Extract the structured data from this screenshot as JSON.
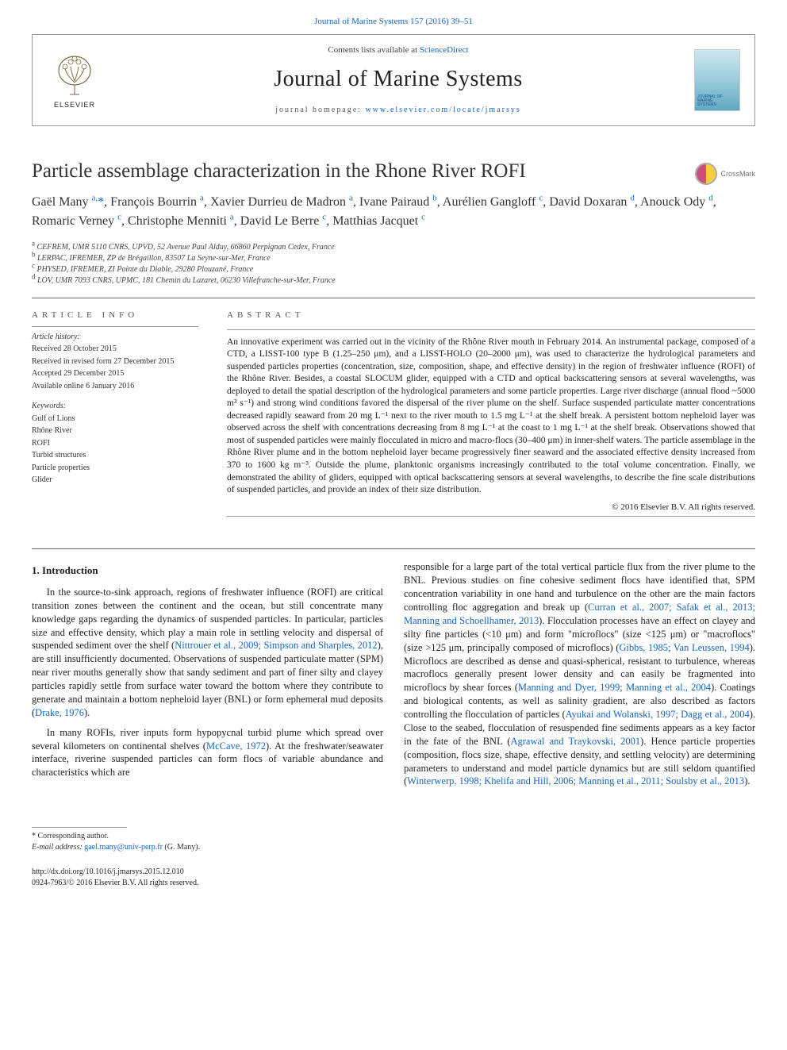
{
  "top_link": "Journal of Marine Systems 157 (2016) 39–51",
  "header": {
    "elsevier": "ELSEVIER",
    "contents_pre": "Contents lists available at ",
    "contents_link": "ScienceDirect",
    "journal": "Journal of Marine Systems",
    "homepage_pre": "journal homepage: ",
    "homepage_url": "www.elsevier.com/locate/jmarsys",
    "cover_caption1": "JOURNAL OF",
    "cover_caption2": "MARINE",
    "cover_caption3": "SYSTEMS"
  },
  "title": "Particle assemblage characterization in the Rhone River ROFI",
  "crossmark": "CrossMark",
  "authors_html": "Gaël Many <sup>a,</sup><span class='corr'>*</span>, François Bourrin <sup>a</sup>, Xavier Durrieu de Madron <sup>a</sup>, Ivane Pairaud <sup>b</sup>, Aurélien Gangloff <sup>c</sup>, David Doxaran <sup>d</sup>, Anouck Ody <sup>d</sup>, Romaric Verney <sup>c</sup>, Christophe Menniti <sup>a</sup>, David Le Berre <sup>c</sup>, Matthias Jacquet <sup>c</sup>",
  "affiliations": {
    "a": "CEFREM, UMR 5110 CNRS, UPVD, 52 Avenue Paul Alduy, 66860 Perpignan Cedex, France",
    "b": "LERPAC, IFREMER, ZP de Brégaillon, 83507 La Seyne-sur-Mer, France",
    "c": "PHYSED, IFREMER, ZI Pointe du Diable, 29280 Plouzané, France",
    "d": "LOV, UMR 7093 CNRS, UPMC, 181 Chemin du Lazaret, 06230 Villefranche-sur-Mer, France"
  },
  "article_info": {
    "heading": "article info",
    "history_label": "Article history:",
    "received": "Received 28 October 2015",
    "revised": "Received in revised form 27 December 2015",
    "accepted": "Accepted 29 December 2015",
    "online": "Available online 6 January 2016",
    "kw_label": "Keywords:",
    "keywords": [
      "Gulf of Lions",
      "Rhône River",
      "ROFI",
      "Turbid structures",
      "Particle properties",
      "Glider"
    ]
  },
  "abstract": {
    "heading": "abstract",
    "text": "An innovative experiment was carried out in the vicinity of the Rhône River mouth in February 2014. An instrumental package, composed of a CTD, a LISST-100 type B (1.25–250 μm), and a LISST-HOLO (20–2000 μm), was used to characterize the hydrological parameters and suspended particles properties (concentration, size, composition, shape, and effective density) in the region of freshwater influence (ROFI) of the Rhône River. Besides, a coastal SLOCUM glider, equipped with a CTD and optical backscattering sensors at several wavelengths, was deployed to detail the spatial description of the hydrological parameters and some particle properties. Large river discharge (annual flood ~5000 m³ s⁻¹) and strong wind conditions favored the dispersal of the river plume on the shelf. Surface suspended particulate matter concentrations decreased rapidly seaward from 20 mg L⁻¹ next to the river mouth to 1.5 mg L⁻¹ at the shelf break. A persistent bottom nepheloid layer was observed across the shelf with concentrations decreasing from 8 mg L⁻¹ at the coast to 1 mg L⁻¹ at the shelf break. Observations showed that most of suspended particles were mainly flocculated in micro and macro-flocs (30–400 μm) in inner-shelf waters. The particle assemblage in the Rhône River plume and in the bottom nepheloid layer became progressively finer seaward and the associated effective density increased from 370 to 1600 kg m⁻³. Outside the plume, planktonic organisms increasingly contributed to the total volume concentration. Finally, we demonstrated the ability of gliders, equipped with optical backscattering sensors at several wavelengths, to describe the fine scale distributions of suspended particles, and provide an index of their size distribution.",
    "copyright": "© 2016 Elsevier B.V. All rights reserved."
  },
  "section_heading": "1. Introduction",
  "para1_pre": "In the source-to-sink approach, regions of freshwater influence (ROFI) are critical transition zones between the continent and the ocean, but still concentrate many knowledge gaps regarding the dynamics of suspended particles. In particular, particles size and effective density, which play a main role in settling velocity and dispersal of suspended sediment over the shelf (",
  "ref1": "Nittrouer et al., 2009; Simpson and Sharples, 2012",
  "para1_mid": "), are still insufficiently documented. Observations of suspended particulate matter (SPM) near river mouths generally show that sandy sediment and part of finer silty and clayey particles rapidly settle from surface water toward the bottom where they contribute to generate and maintain a bottom nepheloid layer (BNL) or form ephemeral mud deposits (",
  "ref2": "Drake, 1976",
  "para1_end": ").",
  "para2_pre": "In many ROFIs, river inputs form hypopycnal turbid plume which spread over several kilometers on continental shelves (",
  "ref3": "McCave, 1972",
  "para2_end": "). At the freshwater/seawater interface, riverine suspended particles can form flocs of variable abundance and characteristics which are",
  "para3_pre": "responsible for a large part of the total vertical particle flux from the river plume to the BNL. Previous studies on fine cohesive sediment flocs have identified that, SPM concentration variability in one hand and turbulence on the other are the main factors controlling floc aggregation and break up (",
  "ref4": "Curran et al., 2007; Safak et al., 2013; Manning and Schoellhamer, 2013",
  "para3_mid1": "). Flocculation processes have an effect on clayey and silty fine particles (<10 μm) and form \"microflocs\" (size <125 μm) or \"macroflocs\" (size >125 μm, principally composed of microflocs) (",
  "ref5": "Gibbs, 1985; Van Leussen, 1994",
  "para3_mid2": "). Microflocs are described as dense and quasi-spherical, resistant to turbulence, whereas macroflocs generally present lower density and can easily be fragmented into microflocs by shear forces (",
  "ref6": "Manning and Dyer, 1999; Manning et al., 2004",
  "para3_mid3": "). Coatings and biological contents, as well as salinity gradient, are also described as factors controlling the flocculation of particles (",
  "ref7": "Ayukai and Wolanski, 1997; Dagg et al., 2004",
  "para3_mid4": "). Close to the seabed, flocculation of resuspended fine sediments appears as a key factor in the fate of the BNL (",
  "ref8": "Agrawal and Traykovski, 2001",
  "para3_mid5": "). Hence particle properties (composition, flocs size, shape, effective density, and settling velocity) are determining parameters to understand and model particle dynamics but are still seldom quantified (",
  "ref9": "Winterwerp, 1998; Khelifa and Hill, 2006; Manning et al., 2011; Soulsby et al., 2013",
  "para3_end": ").",
  "corr_label": "Corresponding author.",
  "email_label": "E-mail address:",
  "email": "gael.many@univ-perp.fr",
  "email_tail": " (G. Many).",
  "doi": "http://dx.doi.org/10.1016/j.jmarsys.2015.12.010",
  "issn_line": "0924-7963/© 2016 Elsevier B.V. All rights reserved."
}
